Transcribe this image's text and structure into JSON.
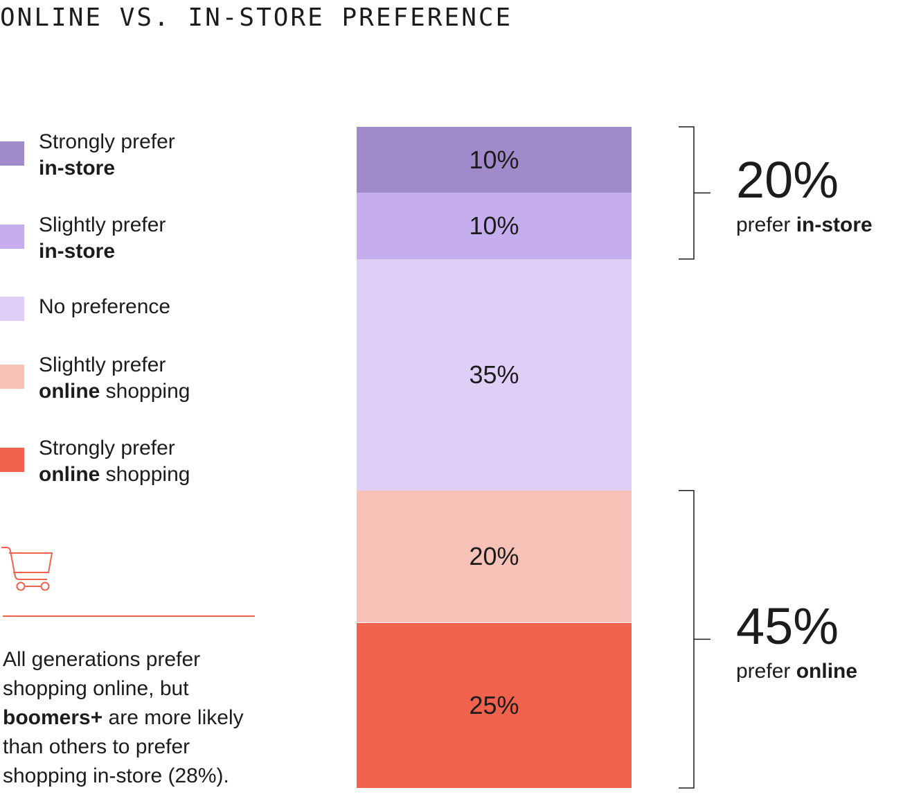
{
  "chart_data": {
    "type": "bar",
    "stacked": true,
    "orientation": "vertical",
    "title": "ONLINE VS. IN-STORE PREFERENCE",
    "categories": [
      ""
    ],
    "series": [
      {
        "name": "Strongly prefer in-store",
        "values": [
          10
        ],
        "label": "10%",
        "color": "#a08ac9",
        "legend_line1": "Strongly prefer",
        "legend_bold": "in-store",
        "legend_rest": ""
      },
      {
        "name": "Slightly prefer in-store",
        "values": [
          10
        ],
        "label": "10%",
        "color": "#c6aeee",
        "legend_line1": "Slightly prefer",
        "legend_bold": "in-store",
        "legend_rest": ""
      },
      {
        "name": "No preference",
        "values": [
          35
        ],
        "label": "35%",
        "color": "#dfcff6",
        "legend_line1": "No preference",
        "legend_bold": "",
        "legend_rest": ""
      },
      {
        "name": "Slightly prefer online shopping",
        "values": [
          20
        ],
        "label": "20%",
        "color": "#f6c1b6",
        "legend_line1": "Slightly prefer",
        "legend_bold": "online",
        "legend_rest": " shopping"
      },
      {
        "name": "Strongly prefer online shopping",
        "values": [
          25
        ],
        "label": "25%",
        "color": "#f0624d",
        "legend_line1": "Strongly prefer",
        "legend_bold": "online",
        "legend_rest": " shopping"
      }
    ],
    "totals": [
      {
        "value": 20,
        "big": "20%",
        "prefix": "prefer ",
        "bold": "in-store",
        "from_series": 0,
        "to_series": 1
      },
      {
        "value": 45,
        "big": "45%",
        "prefix": "prefer ",
        "bold": "online",
        "from_series": 3,
        "to_series": 4
      }
    ],
    "legend": "left",
    "grid": false
  },
  "note": {
    "part1": "All generations prefer shopping online, but ",
    "bold": "boomers+",
    "part2": " are more likely than others to prefer shopping in-store (28%)."
  },
  "icons": {
    "cart": "shopping-cart-icon"
  },
  "colors": {
    "accent": "#f0624d",
    "text": "#1c1c1c",
    "bracket": "#1c1c1c"
  }
}
